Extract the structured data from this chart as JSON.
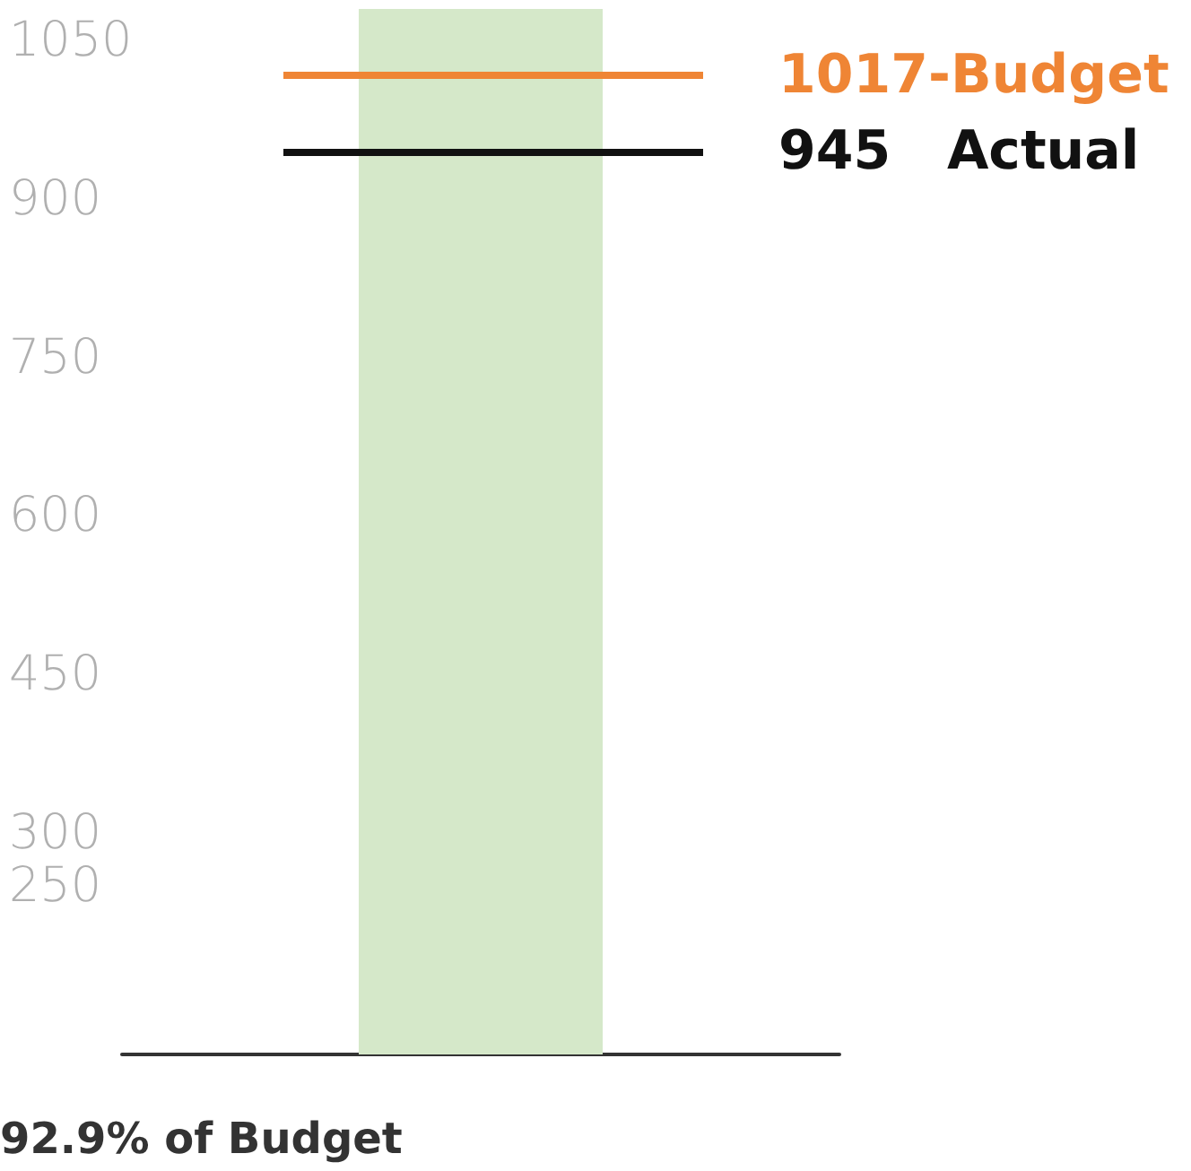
{
  "chart_data": {
    "type": "bar",
    "categories": [
      null
    ],
    "values": [
      1080
    ],
    "color": "#d5e8c9",
    "ylim": [
      90,
      1080
    ],
    "yticks": [
      250,
      300,
      450,
      600,
      750,
      900,
      1050
    ],
    "grid": false,
    "ref_lines": [
      {
        "axis": "y",
        "value": 1017,
        "label": "1017-Budget",
        "color": "#ef8535"
      },
      {
        "axis": "y",
        "value": 945,
        "label": "945   Actual",
        "color": "#111111"
      }
    ],
    "annotations": [
      "92.9% of Budget"
    ]
  }
}
